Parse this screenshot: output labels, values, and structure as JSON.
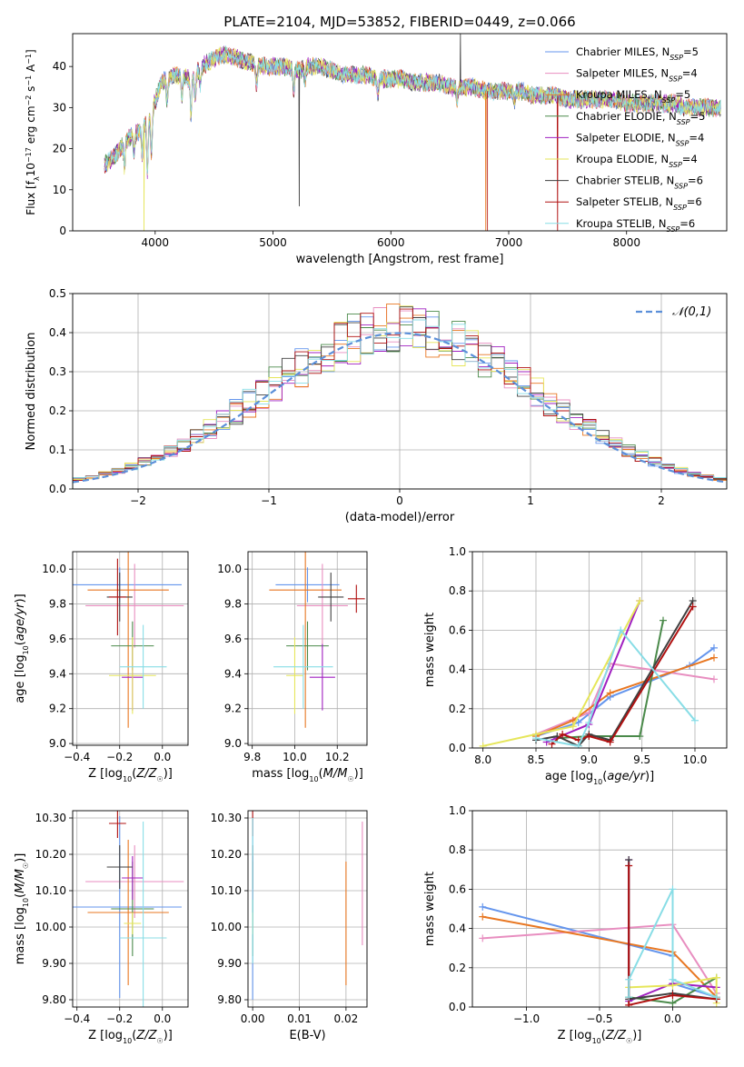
{
  "figure_title": "PLATE=2104, MJD=53852, FIBERID=0449, z=0.066",
  "chart_data": [
    {
      "id": "spectrum",
      "type": "line",
      "xlabel": "wavelength [Angstrom, rest frame]",
      "ylabel": "Flux [f_λ 10^-17 erg cm^-2 s^-1 A^-1]",
      "xlim": [
        3300,
        8850
      ],
      "ylim": [
        0,
        48
      ],
      "xticks": [
        4000,
        5000,
        6000,
        7000,
        8000
      ],
      "yticks": [
        0,
        10,
        20,
        30,
        40
      ],
      "grid": false,
      "legend_position": "top-right",
      "series": [
        {
          "name": "Chabrier MILES, N_SSP=5",
          "color": "#6495ed"
        },
        {
          "name": "Salpeter MILES, N_SSP=4",
          "color": "#e88ec0"
        },
        {
          "name": "Kroupa MILES, N_SSP=5",
          "color": "#e87722"
        },
        {
          "name": "Chabrier ELODIE, N_SSP=5",
          "color": "#4a8a4a"
        },
        {
          "name": "Salpeter ELODIE, N_SSP=4",
          "color": "#a020c0"
        },
        {
          "name": "Kroupa ELODIE, N_SSP=4",
          "color": "#e6e65a"
        },
        {
          "name": "Chabrier STELIB, N_SSP=6",
          "color": "#404040"
        },
        {
          "name": "Salpeter STELIB, N_SSP=6",
          "color": "#b01010"
        },
        {
          "name": "Kroupa STELIB, N_SSP=6",
          "color": "#88dde6"
        }
      ],
      "continuum": {
        "x": [
          3570,
          3650,
          3750,
          3850,
          3950,
          4050,
          4150,
          4300,
          4400,
          4500,
          4600,
          4700,
          4800,
          4900,
          5000,
          5100,
          5200,
          5300,
          5400,
          5500,
          5600,
          5700,
          5800,
          5900,
          6000,
          6100,
          6200,
          6300,
          6400,
          6500,
          6600,
          6700,
          6800,
          6900,
          7000,
          7100,
          7200,
          7300,
          7400,
          7500,
          7600,
          7700,
          7800,
          7900,
          8000,
          8100,
          8200,
          8300,
          8400,
          8500,
          8600,
          8700,
          8800
        ],
        "y": [
          16,
          18,
          22,
          24,
          27,
          36,
          38,
          37,
          40,
          42,
          43,
          42,
          41,
          40,
          40,
          40,
          39,
          40,
          40,
          39,
          38,
          38,
          38,
          37,
          37,
          37,
          36,
          36,
          36,
          35,
          35,
          35,
          34,
          34,
          34,
          34,
          33,
          33,
          33,
          32,
          32,
          32,
          32,
          32,
          31,
          31,
          31,
          31,
          31,
          30,
          30,
          30,
          30
        ]
      },
      "features": [
        {
          "x": 3740,
          "depth": 6
        },
        {
          "x": 3820,
          "depth": 5
        },
        {
          "x": 3890,
          "depth": 7
        },
        {
          "x": 3934,
          "depth": 12
        },
        {
          "x": 3969,
          "depth": 10
        },
        {
          "x": 4102,
          "depth": 6
        },
        {
          "x": 4227,
          "depth": 5
        },
        {
          "x": 4304,
          "depth": 9
        },
        {
          "x": 4340,
          "depth": 6
        },
        {
          "x": 4383,
          "depth": 4
        },
        {
          "x": 4861,
          "depth": 5
        },
        {
          "x": 5175,
          "depth": 5
        },
        {
          "x": 5270,
          "depth": 3
        },
        {
          "x": 5890,
          "depth": 4
        },
        {
          "x": 6563,
          "depth": 3
        },
        {
          "x": 7050,
          "depth": 2
        }
      ],
      "spikes": [
        {
          "series": 5,
          "x": 3905,
          "y": 0
        },
        {
          "series": 6,
          "x": 5223,
          "y": 6
        },
        {
          "series": 6,
          "x": 6590,
          "y": 48
        },
        {
          "series": 2,
          "x": 6805,
          "y": 0
        },
        {
          "series": 7,
          "x": 6820,
          "y": 0
        },
        {
          "series": 7,
          "x": 7415,
          "y": 0
        }
      ]
    },
    {
      "id": "residuals",
      "type": "histogram",
      "xlabel": "(data-model)/error",
      "ylabel": "Normed distribution",
      "xlim": [
        -2.5,
        2.5
      ],
      "ylim": [
        0,
        0.5
      ],
      "xticks": [
        -2,
        -1,
        0,
        1,
        2
      ],
      "yticks": [
        0.0,
        0.1,
        0.2,
        0.3,
        0.4,
        0.5
      ],
      "grid": true,
      "legend_position": "top-right",
      "bin_width": 0.1,
      "bin_start": -2.5,
      "reference": {
        "name": "𝒩(0,1)",
        "color": "#5b8fd9",
        "mean": 0,
        "sigma": 1
      }
    },
    {
      "id": "age-vs-Z",
      "type": "errorbar",
      "xlabel": "Z [log10(Z/Z☉)]",
      "ylabel": "age [log10(age/yr)]",
      "xlim": [
        -0.42,
        0.12
      ],
      "ylim": [
        8.99,
        10.1
      ],
      "xticks": [
        -0.4,
        -0.2,
        0.0
      ],
      "yticks": [
        9.0,
        9.2,
        9.4,
        9.6,
        9.8,
        10.0
      ],
      "grid": true,
      "points": [
        {
          "x": -0.2,
          "xerr": 0.29,
          "y": 9.91,
          "yerr": 0.1,
          "color": "#6495ed"
        },
        {
          "x": -0.13,
          "xerr": 0.23,
          "y": 9.79,
          "yerr": 0.24,
          "color": "#e88ec0"
        },
        {
          "x": -0.16,
          "xerr": 0.19,
          "y": 9.88,
          "yerr": 0.79,
          "color": "#e87722"
        },
        {
          "x": -0.14,
          "xerr": 0.1,
          "y": 9.56,
          "yerr": 0.14,
          "color": "#4a8a4a"
        },
        {
          "x": -0.14,
          "xerr": 0.05,
          "y": 9.38,
          "yerr": 0.19,
          "color": "#a020c0"
        },
        {
          "x": -0.14,
          "xerr": 0.11,
          "y": 9.39,
          "yerr": 0.22,
          "color": "#e6e65a"
        },
        {
          "x": -0.2,
          "xerr": 0.06,
          "y": 9.84,
          "yerr": 0.14,
          "color": "#404040"
        },
        {
          "x": -0.21,
          "xerr": 0.04,
          "y": 9.84,
          "yerr": 0.22,
          "color": "#b01010"
        },
        {
          "x": -0.09,
          "xerr": 0.11,
          "y": 9.44,
          "yerr": 0.24,
          "color": "#88dde6"
        }
      ]
    },
    {
      "id": "age-vs-mass",
      "type": "errorbar",
      "xlabel": "mass [log10(M/M☉)]",
      "ylabel": "",
      "xlim": [
        9.78,
        10.34
      ],
      "ylim": [
        8.99,
        10.1
      ],
      "xticks": [
        9.8,
        10.0,
        10.2
      ],
      "yticks": [
        9.0,
        9.2,
        9.4,
        9.6,
        9.8,
        10.0
      ],
      "grid": true,
      "points": [
        {
          "x": 10.06,
          "xerr": 0.15,
          "y": 9.91,
          "yerr": 0.1,
          "color": "#6495ed"
        },
        {
          "x": 10.13,
          "xerr": 0.12,
          "y": 9.79,
          "yerr": 0.24,
          "color": "#e88ec0"
        },
        {
          "x": 10.05,
          "xerr": 0.17,
          "y": 9.88,
          "yerr": 0.79,
          "color": "#e87722"
        },
        {
          "x": 10.06,
          "xerr": 0.1,
          "y": 9.56,
          "yerr": 0.14,
          "color": "#4a8a4a"
        },
        {
          "x": 10.13,
          "xerr": 0.06,
          "y": 9.38,
          "yerr": 0.19,
          "color": "#a020c0"
        },
        {
          "x": 10.0,
          "xerr": 0.04,
          "y": 9.39,
          "yerr": 0.22,
          "color": "#e6e65a"
        },
        {
          "x": 10.17,
          "xerr": 0.06,
          "y": 9.84,
          "yerr": 0.14,
          "color": "#404040"
        },
        {
          "x": 10.29,
          "xerr": 0.04,
          "y": 9.83,
          "yerr": 0.08,
          "color": "#b01010"
        },
        {
          "x": 10.04,
          "xerr": 0.14,
          "y": 9.44,
          "yerr": 0.24,
          "color": "#88dde6"
        }
      ]
    },
    {
      "id": "weight-vs-age",
      "type": "line",
      "xlabel": "age [log10(age/yr)]",
      "ylabel": "mass weight",
      "xlim": [
        7.9,
        10.3
      ],
      "ylim": [
        0,
        1
      ],
      "xticks": [
        8.0,
        8.5,
        9.0,
        9.5,
        10.0
      ],
      "yticks": [
        0.0,
        0.2,
        0.4,
        0.6,
        0.8,
        1.0
      ],
      "grid": true,
      "series": [
        {
          "color": "#6495ed",
          "x": [
            8.5,
            8.9,
            9.2,
            9.95,
            10.18
          ],
          "y": [
            0.06,
            0.13,
            0.26,
            0.42,
            0.51
          ]
        },
        {
          "color": "#e88ec0",
          "x": [
            8.5,
            9.0,
            9.2,
            10.18
          ],
          "y": [
            0.07,
            0.18,
            0.43,
            0.35
          ]
        },
        {
          "color": "#e87722",
          "x": [
            8.5,
            8.85,
            9.2,
            10.18
          ],
          "y": [
            0.06,
            0.14,
            0.28,
            0.46
          ]
        },
        {
          "color": "#4a8a4a",
          "x": [
            8.7,
            9.0,
            9.48,
            9.7
          ],
          "y": [
            0.05,
            0.06,
            0.06,
            0.65
          ]
        },
        {
          "color": "#a020c0",
          "x": [
            8.6,
            9.0,
            9.48
          ],
          "y": [
            0.03,
            0.12,
            0.75
          ]
        },
        {
          "color": "#e6e65a",
          "x": [
            8.0,
            8.5,
            8.85,
            9.48
          ],
          "y": [
            0.01,
            0.07,
            0.11,
            0.75
          ]
        },
        {
          "color": "#404040",
          "x": [
            8.5,
            8.7,
            8.9,
            9.0,
            9.2,
            9.98
          ],
          "y": [
            0.04,
            0.06,
            0.01,
            0.07,
            0.04,
            0.75
          ]
        },
        {
          "color": "#b01010",
          "x": [
            8.65,
            8.75,
            8.9,
            9.0,
            9.2,
            9.98
          ],
          "y": [
            0.02,
            0.07,
            0.04,
            0.06,
            0.03,
            0.72
          ]
        },
        {
          "color": "#88dde6",
          "x": [
            8.5,
            8.9,
            9.0,
            9.3,
            10.0
          ],
          "y": [
            0.05,
            0.01,
            0.13,
            0.6,
            0.14
          ]
        }
      ]
    },
    {
      "id": "mass-vs-Z",
      "type": "errorbar",
      "xlabel": "Z [log10(Z/Z☉)]",
      "ylabel": "mass [log10(M/M☉)]",
      "xlim": [
        -0.42,
        0.12
      ],
      "ylim": [
        9.78,
        10.32
      ],
      "xticks": [
        -0.4,
        -0.2,
        0.0
      ],
      "yticks": [
        9.8,
        9.9,
        10.0,
        10.1,
        10.2,
        10.3
      ],
      "grid": true,
      "points": [
        {
          "x": -0.2,
          "xerr": 0.29,
          "y": 10.055,
          "yerr": 0.25,
          "color": "#6495ed"
        },
        {
          "x": -0.13,
          "xerr": 0.23,
          "y": 10.125,
          "yerr": 0.1,
          "color": "#e88ec0"
        },
        {
          "x": -0.16,
          "xerr": 0.19,
          "y": 10.04,
          "yerr": 0.2,
          "color": "#e87722"
        },
        {
          "x": -0.14,
          "xerr": 0.1,
          "y": 10.05,
          "yerr": 0.13,
          "color": "#4a8a4a"
        },
        {
          "x": -0.14,
          "xerr": 0.05,
          "y": 10.135,
          "yerr": 0.06,
          "color": "#a020c0"
        },
        {
          "x": -0.14,
          "xerr": 0.04,
          "y": 10.01,
          "yerr": 0.03,
          "color": "#e6e65a"
        },
        {
          "x": -0.2,
          "xerr": 0.06,
          "y": 10.165,
          "yerr": 0.06,
          "color": "#404040"
        },
        {
          "x": -0.21,
          "xerr": 0.04,
          "y": 10.285,
          "yerr": 0.04,
          "color": "#b01010"
        },
        {
          "x": -0.09,
          "xerr": 0.11,
          "y": 9.97,
          "yerr": 0.32,
          "color": "#88dde6"
        }
      ]
    },
    {
      "id": "mass-vs-ebv",
      "type": "errorbar",
      "xlabel": "E(B-V)",
      "ylabel": "",
      "xlim": [
        -0.001,
        0.0245
      ],
      "ylim": [
        9.78,
        10.32
      ],
      "xticks": [
        0.0,
        0.01,
        0.02
      ],
      "yticks": [
        9.8,
        9.9,
        10.0,
        10.1,
        10.2,
        10.3
      ],
      "grid": true,
      "points": [
        {
          "x": 0.0,
          "y": 10.05,
          "yerr": 0.25,
          "color": "#6495ed"
        },
        {
          "x": 0.0235,
          "y": 10.12,
          "yerr": 0.17,
          "color": "#e88ec0"
        },
        {
          "x": 0.02,
          "y": 10.01,
          "yerr": 0.17,
          "color": "#e87722"
        },
        {
          "x": 0.0,
          "y": 10.05,
          "yerr": 0.13,
          "color": "#4a8a4a"
        },
        {
          "x": 0.0,
          "y": 10.135,
          "yerr": 0.06,
          "color": "#a020c0"
        },
        {
          "x": 0.0,
          "y": 10.01,
          "yerr": 0.03,
          "color": "#e6e65a"
        },
        {
          "x": 0.0,
          "y": 10.165,
          "yerr": 0.06,
          "color": "#404040"
        },
        {
          "x": 0.0,
          "y": 10.29,
          "yerr": 0.04,
          "color": "#b01010"
        },
        {
          "x": 0.0,
          "y": 10.1,
          "yerr": 0.2,
          "color": "#88dde6"
        }
      ]
    },
    {
      "id": "weight-vs-Z",
      "type": "line",
      "xlabel": "Z [log10(Z/Z☉)]",
      "ylabel": "mass weight",
      "xlim": [
        -1.37,
        0.37
      ],
      "ylim": [
        0,
        1
      ],
      "xticks": [
        -1.0,
        -0.5,
        0.0
      ],
      "yticks": [
        0.0,
        0.2,
        0.4,
        0.6,
        0.8,
        1.0
      ],
      "grid": true,
      "series": [
        {
          "color": "#6495ed",
          "x": [
            -1.3,
            0.0,
            0.0,
            0.3
          ],
          "y": [
            0.51,
            0.26,
            0.12,
            0.05
          ]
        },
        {
          "color": "#e88ec0",
          "x": [
            -1.3,
            0.0,
            0.3
          ],
          "y": [
            0.35,
            0.42,
            0.07
          ]
        },
        {
          "color": "#e87722",
          "x": [
            -1.3,
            0.0,
            0.3
          ],
          "y": [
            0.46,
            0.28,
            0.05
          ]
        },
        {
          "color": "#4a8a4a",
          "x": [
            -0.3,
            0.0,
            0.3
          ],
          "y": [
            0.05,
            0.02,
            0.15
          ]
        },
        {
          "color": "#a020c0",
          "x": [
            -0.3,
            -0.3,
            0.0,
            0.3
          ],
          "y": [
            0.75,
            0.03,
            0.12,
            0.1
          ]
        },
        {
          "color": "#e6e65a",
          "x": [
            -0.3,
            0.0,
            0.3,
            0.3
          ],
          "y": [
            0.1,
            0.11,
            0.15,
            0.02
          ]
        },
        {
          "color": "#404040",
          "x": [
            -0.3,
            -0.3,
            0.0,
            0.3
          ],
          "y": [
            0.75,
            0.04,
            0.07,
            0.04
          ]
        },
        {
          "color": "#b01010",
          "x": [
            -0.3,
            -0.3,
            0.0,
            0.3
          ],
          "y": [
            0.72,
            0.01,
            0.06,
            0.04
          ]
        },
        {
          "color": "#88dde6",
          "x": [
            -0.3,
            -0.3,
            0.0,
            0.0,
            0.3
          ],
          "y": [
            0.05,
            0.14,
            0.6,
            0.14,
            0.05
          ]
        }
      ]
    }
  ]
}
